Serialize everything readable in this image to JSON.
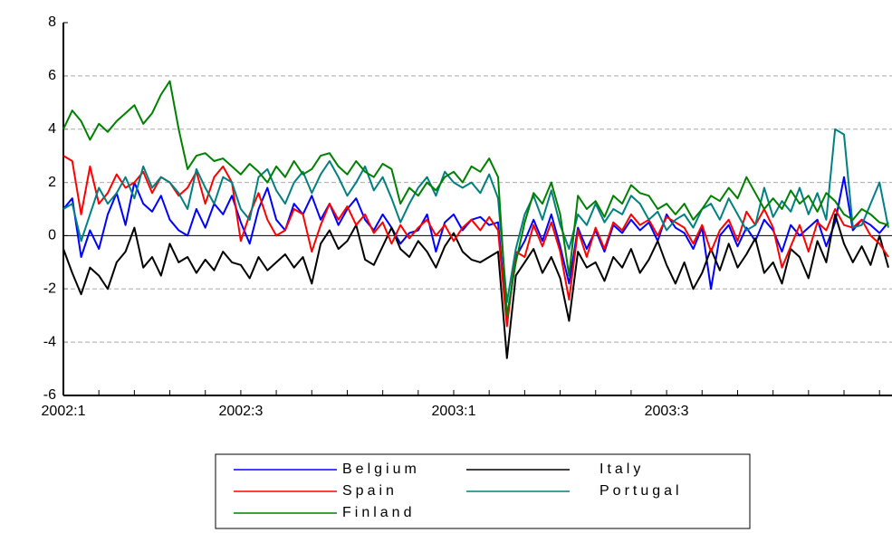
{
  "chart_data": {
    "type": "line",
    "categories": [
      "2002:1",
      null,
      null,
      null,
      null,
      null,
      null,
      null,
      null,
      null,
      null,
      null,
      null,
      null,
      null,
      null,
      null,
      null,
      null,
      null,
      "2002:3",
      null,
      null,
      null,
      null,
      null,
      null,
      null,
      null,
      null,
      null,
      null,
      null,
      null,
      null,
      null,
      null,
      null,
      null,
      null,
      null,
      null,
      null,
      null,
      "2003:1",
      null,
      null,
      null,
      null,
      null,
      null,
      null,
      null,
      null,
      null,
      null,
      null,
      null,
      null,
      null,
      null,
      null,
      null,
      null,
      null,
      null,
      null,
      null,
      "2003:3",
      null,
      null,
      null,
      null,
      null,
      null,
      null,
      null,
      null,
      null,
      null,
      null,
      null,
      null,
      null,
      null,
      null,
      null,
      null,
      null,
      null,
      null,
      null,
      null,
      null
    ],
    "series": [
      {
        "name": "Belgium",
        "color": "#0000ff",
        "values": [
          1.0,
          1.4,
          -0.8,
          0.2,
          -0.5,
          0.8,
          1.6,
          0.4,
          2.0,
          1.2,
          0.9,
          1.5,
          0.6,
          0.2,
          0.0,
          1.0,
          0.3,
          1.2,
          0.8,
          1.5,
          0.5,
          -0.3,
          1.0,
          1.8,
          0.6,
          0.2,
          1.2,
          0.8,
          1.5,
          0.6,
          1.2,
          0.4,
          1.0,
          1.4,
          0.6,
          0.2,
          0.8,
          0.3,
          -0.3,
          0.1,
          0.2,
          0.8,
          -0.6,
          0.5,
          0.8,
          0.2,
          0.6,
          0.7,
          0.4,
          0.5,
          -3.3,
          -0.8,
          -0.2,
          0.6,
          -0.2,
          0.8,
          -0.4,
          -1.8,
          0.3,
          -0.5,
          0.2,
          -0.6,
          0.4,
          0.1,
          0.6,
          0.2,
          0.5,
          -0.2,
          0.8,
          0.3,
          0.1,
          -0.5,
          0.3,
          -2.0,
          0.0,
          0.4,
          -0.4,
          0.3,
          -0.2,
          0.6,
          0.2,
          -0.6,
          0.4,
          0.0,
          0.3,
          0.6,
          -0.4,
          0.5,
          2.2,
          0.2,
          0.6,
          0.4,
          0.1,
          0.5
        ]
      },
      {
        "name": "Italy",
        "color": "#000000",
        "values": [
          -0.5,
          -1.4,
          -2.2,
          -1.2,
          -1.5,
          -2.0,
          -1.0,
          -0.6,
          0.3,
          -1.2,
          -0.8,
          -1.5,
          -0.3,
          -1.0,
          -0.8,
          -1.4,
          -0.9,
          -1.3,
          -0.6,
          -1.0,
          -1.1,
          -1.6,
          -0.8,
          -1.3,
          -1.0,
          -0.7,
          -1.2,
          -0.8,
          -1.8,
          -0.3,
          0.2,
          -0.5,
          -0.2,
          0.4,
          -0.9,
          -1.1,
          -0.4,
          0.3,
          -0.5,
          -0.8,
          -0.2,
          -0.6,
          -1.2,
          -0.4,
          0.1,
          -0.6,
          -0.9,
          -1.0,
          -0.8,
          -0.6,
          -4.6,
          -1.5,
          -1.0,
          -0.5,
          -1.4,
          -0.8,
          -1.6,
          -3.2,
          -0.6,
          -1.2,
          -1.0,
          -1.7,
          -0.8,
          -1.2,
          -0.5,
          -1.4,
          -0.9,
          -0.2,
          -1.1,
          -1.8,
          -1.0,
          -2.0,
          -1.4,
          -0.5,
          -1.3,
          -0.3,
          -1.2,
          -0.7,
          -0.1,
          -1.4,
          -1.0,
          -1.8,
          -0.5,
          -0.8,
          -1.6,
          -0.2,
          -1.0,
          0.8,
          -0.3,
          -1.0,
          -0.4,
          -1.1,
          0.0,
          -1.2
        ]
      },
      {
        "name": "Spain",
        "color": "#ff0000",
        "values": [
          3.0,
          2.8,
          0.8,
          2.6,
          1.2,
          1.6,
          2.3,
          1.8,
          2.0,
          2.4,
          1.6,
          2.2,
          2.0,
          1.5,
          1.8,
          2.4,
          1.2,
          2.2,
          2.6,
          2.0,
          -0.2,
          0.8,
          1.6,
          0.6,
          0.0,
          0.2,
          1.0,
          0.8,
          -0.6,
          0.4,
          1.2,
          0.6,
          1.1,
          0.4,
          0.8,
          0.1,
          0.5,
          -0.3,
          0.4,
          -0.1,
          0.3,
          0.6,
          0.0,
          0.4,
          -0.2,
          0.3,
          0.6,
          0.2,
          0.7,
          0.2,
          -3.4,
          -0.6,
          -0.8,
          0.4,
          -0.4,
          0.5,
          -0.6,
          -2.4,
          0.2,
          -0.8,
          0.3,
          -0.5,
          0.5,
          0.2,
          0.8,
          0.4,
          0.6,
          0.0,
          0.7,
          0.5,
          0.3,
          -0.3,
          0.4,
          -0.6,
          0.2,
          0.6,
          -0.2,
          0.9,
          0.4,
          1.0,
          0.3,
          -1.2,
          -0.4,
          0.4,
          -0.6,
          0.5,
          0.2,
          1.0,
          0.4,
          0.3,
          0.6,
          0.0,
          -0.3,
          -0.8
        ]
      },
      {
        "name": "Portugal",
        "color": "#008080",
        "values": [
          1.0,
          1.2,
          -0.2,
          0.8,
          1.8,
          1.2,
          1.6,
          2.2,
          1.4,
          2.6,
          1.8,
          2.2,
          2.0,
          1.6,
          1.0,
          2.5,
          1.8,
          1.2,
          2.2,
          2.0,
          1.0,
          0.6,
          2.2,
          2.5,
          1.7,
          1.2,
          2.0,
          2.4,
          1.6,
          2.3,
          2.8,
          2.2,
          1.5,
          2.0,
          2.6,
          1.7,
          2.2,
          1.4,
          0.5,
          1.2,
          1.8,
          2.2,
          1.5,
          2.4,
          2.0,
          1.8,
          2.0,
          1.6,
          2.3,
          1.4,
          -2.5,
          -0.5,
          0.8,
          1.5,
          0.6,
          1.7,
          0.4,
          -0.5,
          0.8,
          0.4,
          1.2,
          0.5,
          1.0,
          0.8,
          1.5,
          1.2,
          0.6,
          0.9,
          0.2,
          0.6,
          0.8,
          0.3,
          1.0,
          1.2,
          0.6,
          1.4,
          0.8,
          0.2,
          0.4,
          1.8,
          0.7,
          1.3,
          0.9,
          1.8,
          0.8,
          1.6,
          0.6,
          4.0,
          3.8,
          0.3,
          0.4,
          1.2,
          2.0,
          0.3
        ]
      },
      {
        "name": "Finland",
        "color": "#008000",
        "values": [
          4.0,
          4.7,
          4.3,
          3.6,
          4.2,
          3.9,
          4.3,
          4.6,
          4.9,
          4.2,
          4.6,
          5.3,
          5.8,
          4.0,
          2.5,
          3.0,
          3.1,
          2.8,
          2.9,
          2.6,
          2.3,
          2.7,
          2.4,
          2.0,
          2.6,
          2.2,
          2.8,
          2.3,
          2.5,
          3.0,
          3.1,
          2.6,
          2.3,
          2.8,
          2.4,
          2.2,
          2.7,
          2.5,
          1.2,
          1.8,
          1.5,
          2.0,
          1.7,
          2.2,
          2.4,
          2.0,
          2.6,
          2.4,
          2.9,
          2.2,
          -3.0,
          -1.0,
          0.5,
          1.6,
          1.2,
          2.0,
          0.8,
          -1.5,
          1.5,
          1.0,
          1.3,
          0.7,
          1.5,
          1.2,
          1.9,
          1.6,
          1.5,
          1.0,
          1.2,
          0.8,
          1.2,
          0.6,
          1.0,
          1.5,
          1.3,
          1.8,
          1.4,
          2.2,
          1.6,
          1.0,
          1.4,
          1.0,
          1.7,
          1.2,
          1.5,
          0.9,
          1.6,
          1.3,
          0.8,
          0.6,
          1.0,
          0.8,
          0.5,
          0.4
        ]
      }
    ],
    "ylim": [
      -6,
      8
    ],
    "yticks": [
      -6,
      -4,
      -2,
      0,
      2,
      4,
      6,
      8
    ],
    "grid": true
  }
}
